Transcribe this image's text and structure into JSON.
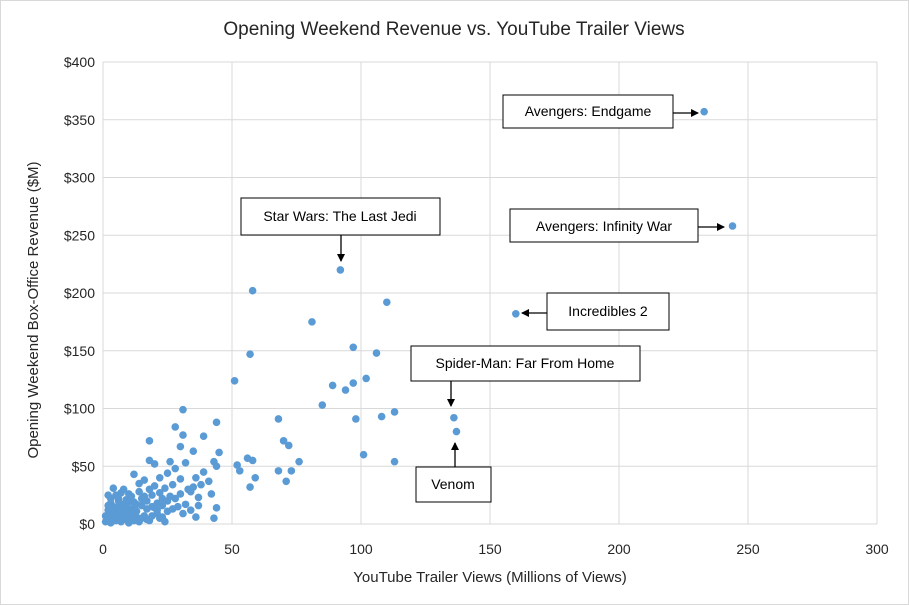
{
  "chart_data": {
    "type": "scatter",
    "title": "Opening Weekend Revenue vs. YouTube Trailer Views",
    "xlabel": "YouTube Trailer Views (Millions of Views)",
    "ylabel": "Opening Weekend Box-Office Revenue ($M)",
    "xlim": [
      0,
      300
    ],
    "ylim": [
      0,
      400
    ],
    "x_ticks": [
      0,
      50,
      100,
      150,
      200,
      250,
      300
    ],
    "y_ticks": [
      0,
      50,
      100,
      150,
      200,
      250,
      300,
      350,
      400
    ],
    "y_tick_labels": [
      "$0",
      "$50",
      "$100",
      "$150",
      "$200",
      "$250",
      "$300",
      "$350",
      "$400"
    ],
    "grid": true,
    "marker_color": "#5b9bd5",
    "series": [
      {
        "points": [
          [
            233,
            357
          ],
          [
            244,
            258
          ],
          [
            160,
            182
          ],
          [
            92,
            220
          ],
          [
            136,
            92
          ],
          [
            137,
            80
          ],
          [
            58,
            202
          ],
          [
            110,
            192
          ],
          [
            81,
            175
          ],
          [
            97,
            153
          ],
          [
            106,
            148
          ],
          [
            57,
            147
          ],
          [
            102,
            126
          ],
          [
            51,
            124
          ],
          [
            97,
            122
          ],
          [
            94,
            116
          ],
          [
            89,
            120
          ],
          [
            85,
            103
          ],
          [
            108,
            93
          ],
          [
            113,
            97
          ],
          [
            98,
            91
          ],
          [
            68,
            91
          ],
          [
            101,
            60
          ],
          [
            113,
            54
          ],
          [
            31,
            99
          ],
          [
            44,
            88
          ],
          [
            28,
            84
          ],
          [
            31,
            77
          ],
          [
            39,
            76
          ],
          [
            18,
            72
          ],
          [
            30,
            67
          ],
          [
            45,
            62
          ],
          [
            70,
            72
          ],
          [
            72,
            68
          ],
          [
            76,
            54
          ],
          [
            73,
            46
          ],
          [
            68,
            46
          ],
          [
            71,
            37
          ],
          [
            58,
            55
          ],
          [
            56,
            57
          ],
          [
            59,
            40
          ],
          [
            57,
            32
          ],
          [
            52,
            51
          ],
          [
            53,
            46
          ],
          [
            35,
            63
          ],
          [
            43,
            54
          ],
          [
            44,
            50
          ],
          [
            39,
            45
          ],
          [
            36,
            40
          ],
          [
            41,
            37
          ],
          [
            38,
            34
          ],
          [
            34,
            28
          ],
          [
            37,
            23
          ],
          [
            42,
            26
          ],
          [
            44,
            14
          ],
          [
            43,
            5
          ],
          [
            36,
            6
          ],
          [
            31,
            9
          ],
          [
            26,
            54
          ],
          [
            32,
            53
          ],
          [
            28,
            48
          ],
          [
            25,
            44
          ],
          [
            22,
            40
          ],
          [
            30,
            39
          ],
          [
            27,
            34
          ],
          [
            20,
            52
          ],
          [
            18,
            55
          ],
          [
            12,
            43
          ],
          [
            16,
            38
          ],
          [
            14,
            35
          ],
          [
            8,
            30
          ],
          [
            4,
            31
          ],
          [
            2,
            25
          ],
          [
            6,
            20
          ],
          [
            3,
            18
          ],
          [
            5,
            14
          ],
          [
            7,
            12
          ],
          [
            9,
            10
          ],
          [
            11,
            8
          ],
          [
            13,
            6
          ],
          [
            15,
            5
          ],
          [
            17,
            4
          ],
          [
            19,
            7
          ],
          [
            21,
            9
          ],
          [
            23,
            6
          ],
          [
            25,
            11
          ],
          [
            27,
            13
          ],
          [
            29,
            15
          ],
          [
            32,
            17
          ],
          [
            34,
            12
          ],
          [
            1,
            2
          ],
          [
            2,
            5
          ],
          [
            3,
            1
          ],
          [
            4,
            8
          ],
          [
            5,
            3
          ],
          [
            6,
            6
          ],
          [
            7,
            2
          ],
          [
            8,
            9
          ],
          [
            9,
            4
          ],
          [
            10,
            1
          ],
          [
            11,
            13
          ],
          [
            12,
            3
          ],
          [
            13,
            11
          ],
          [
            14,
            2
          ],
          [
            15,
            16
          ],
          [
            16,
            7
          ],
          [
            17,
            20
          ],
          [
            18,
            3
          ],
          [
            19,
            25
          ],
          [
            20,
            14
          ],
          [
            21,
            18
          ],
          [
            22,
            5
          ],
          [
            23,
            22
          ],
          [
            24,
            2
          ],
          [
            2,
            12
          ],
          [
            4,
            15
          ],
          [
            6,
            22
          ],
          [
            8,
            17
          ],
          [
            10,
            26
          ],
          [
            12,
            19
          ],
          [
            14,
            28
          ],
          [
            16,
            24
          ],
          [
            18,
            30
          ],
          [
            20,
            33
          ],
          [
            22,
            27
          ],
          [
            24,
            31
          ],
          [
            3,
            9
          ],
          [
            5,
            10
          ],
          [
            7,
            16
          ],
          [
            9,
            21
          ],
          [
            11,
            24
          ],
          [
            13,
            17
          ],
          [
            15,
            22
          ],
          [
            17,
            13
          ],
          [
            19,
            15
          ],
          [
            21,
            12
          ],
          [
            23,
            16
          ],
          [
            25,
            20
          ],
          [
            26,
            24
          ],
          [
            28,
            22
          ],
          [
            30,
            26
          ],
          [
            33,
            30
          ],
          [
            35,
            32
          ],
          [
            37,
            16
          ],
          [
            1,
            7
          ],
          [
            2,
            16
          ],
          [
            3,
            22
          ],
          [
            4,
            3
          ],
          [
            5,
            25
          ],
          [
            6,
            11
          ],
          [
            7,
            27
          ],
          [
            8,
            5
          ],
          [
            9,
            14
          ],
          [
            10,
            19
          ],
          [
            11,
            4
          ],
          [
            12,
            10
          ]
        ]
      }
    ],
    "annotations": [
      {
        "text": "Avengers: Endgame",
        "point": [
          233,
          357
        ]
      },
      {
        "text": "Avengers: Infinity War",
        "point": [
          244,
          258
        ]
      },
      {
        "text": "Incredibles 2",
        "point": [
          160,
          182
        ]
      },
      {
        "text": "Star Wars: The Last Jedi",
        "point": [
          92,
          220
        ]
      },
      {
        "text": "Spider-Man: Far From Home",
        "point": [
          136,
          92
        ]
      },
      {
        "text": "Venom",
        "point": [
          137,
          80
        ]
      }
    ]
  }
}
